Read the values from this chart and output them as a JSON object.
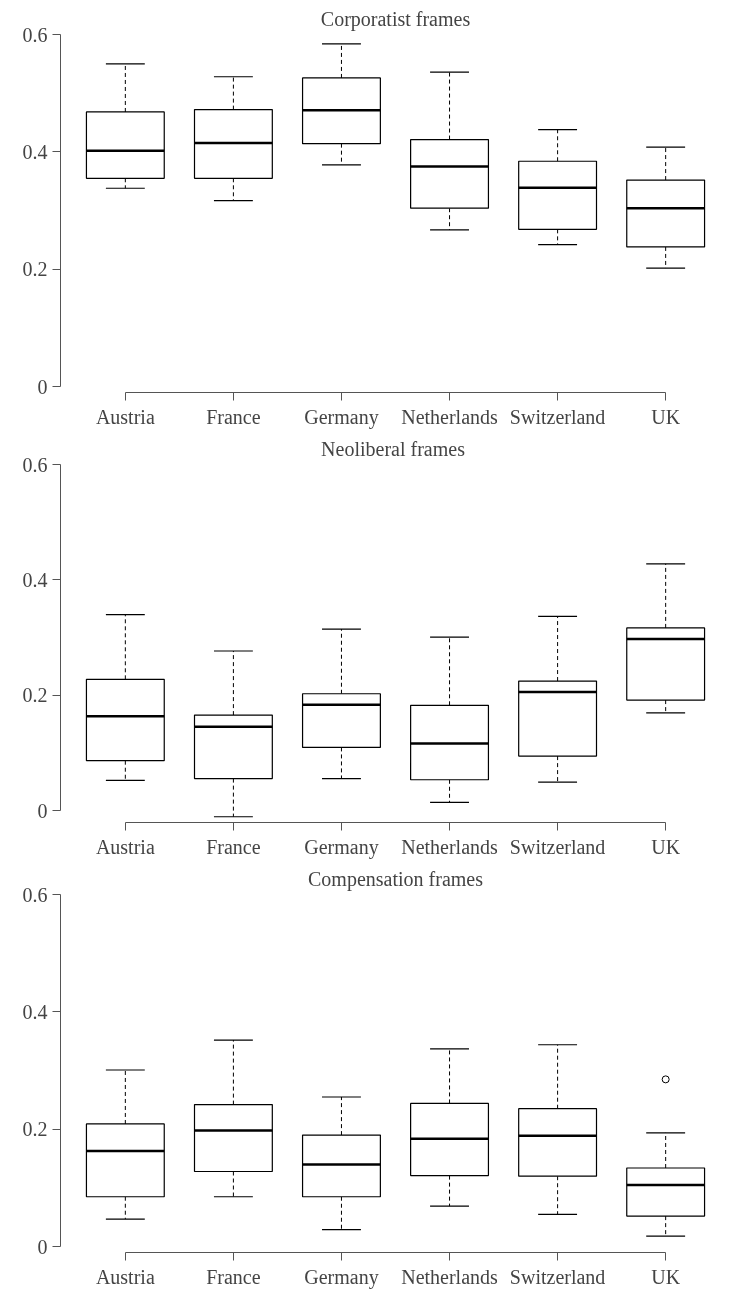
{
  "chart_data": [
    {
      "type": "box",
      "title": "Corporatist frames",
      "categories": [
        "Austria",
        "France",
        "Germany",
        "Netherlands",
        "Switzerland",
        "UK"
      ],
      "ylim": [
        -0.01,
        0.6
      ],
      "yticks": [
        0,
        0.2,
        0.4,
        0.6
      ],
      "boxes": [
        {
          "low": 0.338,
          "q1": 0.355,
          "median": 0.402,
          "q3": 0.468,
          "high": 0.55
        },
        {
          "low": 0.317,
          "q1": 0.355,
          "median": 0.415,
          "q3": 0.472,
          "high": 0.528
        },
        {
          "low": 0.378,
          "q1": 0.414,
          "median": 0.471,
          "q3": 0.526,
          "high": 0.584
        },
        {
          "low": 0.267,
          "q1": 0.304,
          "median": 0.375,
          "q3": 0.421,
          "high": 0.536
        },
        {
          "low": 0.242,
          "q1": 0.268,
          "median": 0.339,
          "q3": 0.384,
          "high": 0.438
        },
        {
          "low": 0.202,
          "q1": 0.238,
          "median": 0.304,
          "q3": 0.352,
          "high": 0.408
        }
      ]
    },
    {
      "type": "box",
      "title": "Neoliberal  frames",
      "categories": [
        "Austria",
        "France",
        "Germany",
        "Netherlands",
        "Switzerland",
        "UK"
      ],
      "ylim": [
        -0.02,
        0.6
      ],
      "yticks": [
        0,
        0.2,
        0.4,
        0.6
      ],
      "boxes": [
        {
          "low": 0.053,
          "q1": 0.087,
          "median": 0.164,
          "q3": 0.228,
          "high": 0.34
        },
        {
          "low": -0.01,
          "q1": 0.056,
          "median": 0.146,
          "q3": 0.166,
          "high": 0.277
        },
        {
          "low": 0.056,
          "q1": 0.11,
          "median": 0.184,
          "q3": 0.203,
          "high": 0.315
        },
        {
          "low": 0.015,
          "q1": 0.054,
          "median": 0.117,
          "q3": 0.183,
          "high": 0.301
        },
        {
          "low": 0.05,
          "q1": 0.095,
          "median": 0.206,
          "q3": 0.225,
          "high": 0.337
        },
        {
          "low": 0.17,
          "q1": 0.192,
          "median": 0.298,
          "q3": 0.317,
          "high": 0.428
        }
      ]
    },
    {
      "type": "box",
      "title": "Compensation frames",
      "categories": [
        "Austria",
        "France",
        "Germany",
        "Netherlands",
        "Switzerland",
        "UK"
      ],
      "ylim": [
        -0.01,
        0.6
      ],
      "yticks": [
        0,
        0.2,
        0.4,
        0.6
      ],
      "boxes": [
        {
          "low": 0.047,
          "q1": 0.085,
          "median": 0.163,
          "q3": 0.209,
          "high": 0.301
        },
        {
          "low": 0.085,
          "q1": 0.128,
          "median": 0.198,
          "q3": 0.242,
          "high": 0.352
        },
        {
          "low": 0.029,
          "q1": 0.085,
          "median": 0.14,
          "q3": 0.19,
          "high": 0.255
        },
        {
          "low": 0.069,
          "q1": 0.121,
          "median": 0.184,
          "q3": 0.244,
          "high": 0.337
        },
        {
          "low": 0.055,
          "q1": 0.12,
          "median": 0.189,
          "q3": 0.235,
          "high": 0.344
        },
        {
          "low": 0.018,
          "q1": 0.052,
          "median": 0.105,
          "q3": 0.134,
          "high": 0.194,
          "outliers": [
            0.285
          ]
        }
      ]
    }
  ]
}
